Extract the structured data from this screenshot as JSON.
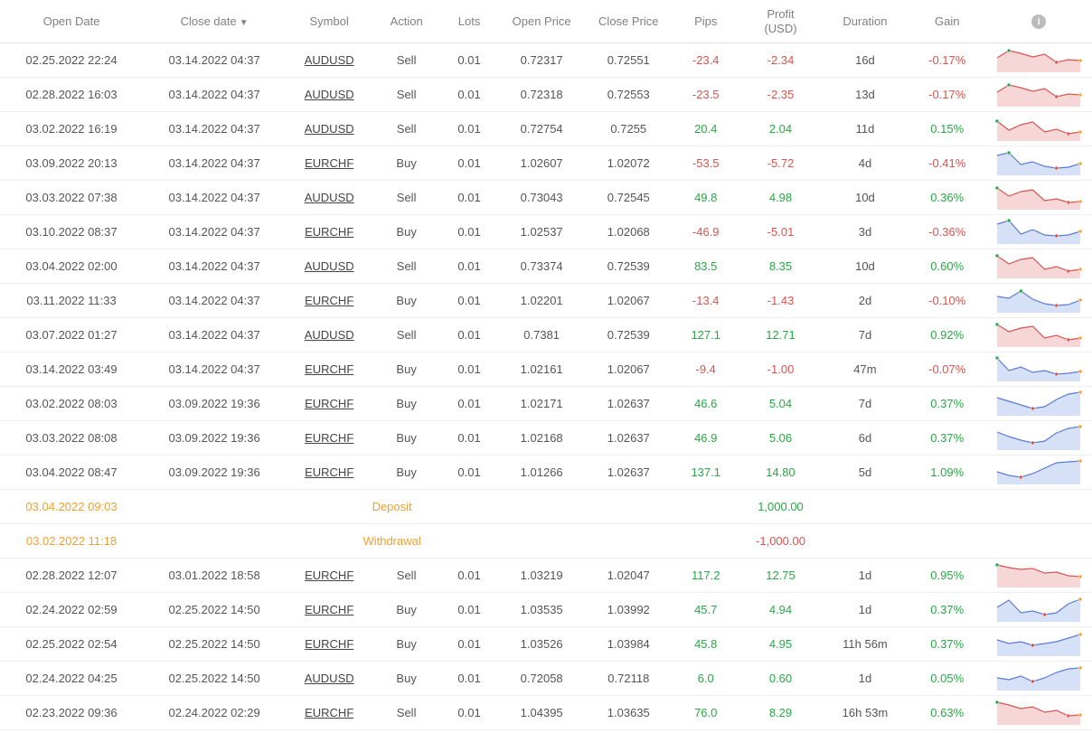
{
  "headers": {
    "open_date": "Open Date",
    "close_date": "Close date",
    "symbol": "Symbol",
    "action": "Action",
    "lots": "Lots",
    "open_price": "Open Price",
    "close_price": "Close Price",
    "pips": "Pips",
    "profit_line1": "Profit",
    "profit_line2": "(USD)",
    "duration": "Duration",
    "gain": "Gain"
  },
  "colors": {
    "positive": "#27a844",
    "negative": "#d9534f",
    "deposit": "#f0a030",
    "border": "#eeeeee",
    "header_text": "#808080",
    "body_text": "#555555",
    "sell_fill": "#f6d6d6",
    "sell_stroke": "#d9534f",
    "buy_fill": "#d6e0f6",
    "buy_stroke": "#5a7cd8"
  },
  "sparkline": {
    "width": 96,
    "height": 30,
    "marker_radius": 2
  },
  "rows": [
    {
      "type": "trade",
      "open": "02.25.2022 22:24",
      "close": "03.14.2022 04:37",
      "symbol": "AUDUSD",
      "action": "Sell",
      "lots": "0.01",
      "op": "0.72317",
      "cp": "0.72551",
      "pips": "-23.4",
      "pips_c": "neg",
      "profit": "-2.34",
      "profit_c": "neg",
      "dur": "16d",
      "gain": "-0.17%",
      "gain_c": "neg",
      "spark": [
        14,
        6,
        9,
        13,
        10,
        19,
        16,
        17
      ],
      "spark_style": "sell"
    },
    {
      "type": "trade",
      "open": "02.28.2022 16:03",
      "close": "03.14.2022 04:37",
      "symbol": "AUDUSD",
      "action": "Sell",
      "lots": "0.01",
      "op": "0.72318",
      "cp": "0.72553",
      "pips": "-23.5",
      "pips_c": "neg",
      "profit": "-2.35",
      "profit_c": "neg",
      "dur": "13d",
      "gain": "-0.17%",
      "gain_c": "neg",
      "spark": [
        14,
        6,
        9,
        13,
        10,
        19,
        16,
        17
      ],
      "spark_style": "sell"
    },
    {
      "type": "trade",
      "open": "03.02.2022 16:19",
      "close": "03.14.2022 04:37",
      "symbol": "AUDUSD",
      "action": "Sell",
      "lots": "0.01",
      "op": "0.72754",
      "cp": "0.7255",
      "pips": "20.4",
      "pips_c": "pos",
      "profit": "2.04",
      "profit_c": "pos",
      "dur": "11d",
      "gain": "0.15%",
      "gain_c": "pos",
      "spark": [
        8,
        18,
        12,
        9,
        20,
        17,
        22,
        20
      ],
      "spark_style": "sell"
    },
    {
      "type": "trade",
      "open": "03.09.2022 20:13",
      "close": "03.14.2022 04:37",
      "symbol": "EURCHF",
      "action": "Buy",
      "lots": "0.01",
      "op": "1.02607",
      "cp": "1.02072",
      "pips": "-53.5",
      "pips_c": "neg",
      "profit": "-5.72",
      "profit_c": "neg",
      "dur": "4d",
      "gain": "-0.41%",
      "gain_c": "neg",
      "spark": [
        8,
        5,
        18,
        15,
        20,
        22,
        21,
        17
      ],
      "spark_style": "buy"
    },
    {
      "type": "trade",
      "open": "03.03.2022 07:38",
      "close": "03.14.2022 04:37",
      "symbol": "AUDUSD",
      "action": "Sell",
      "lots": "0.01",
      "op": "0.73043",
      "cp": "0.72545",
      "pips": "49.8",
      "pips_c": "pos",
      "profit": "4.98",
      "profit_c": "pos",
      "dur": "10d",
      "gain": "0.36%",
      "gain_c": "pos",
      "spark": [
        6,
        15,
        10,
        8,
        20,
        18,
        22,
        21
      ],
      "spark_style": "sell"
    },
    {
      "type": "trade",
      "open": "03.10.2022 08:37",
      "close": "03.14.2022 04:37",
      "symbol": "EURCHF",
      "action": "Buy",
      "lots": "0.01",
      "op": "1.02537",
      "cp": "1.02068",
      "pips": "-46.9",
      "pips_c": "neg",
      "profit": "-5.01",
      "profit_c": "neg",
      "dur": "3d",
      "gain": "-0.36%",
      "gain_c": "neg",
      "spark": [
        8,
        4,
        19,
        14,
        20,
        21,
        20,
        16
      ],
      "spark_style": "buy"
    },
    {
      "type": "trade",
      "open": "03.04.2022 02:00",
      "close": "03.14.2022 04:37",
      "symbol": "AUDUSD",
      "action": "Sell",
      "lots": "0.01",
      "op": "0.73374",
      "cp": "0.72539",
      "pips": "83.5",
      "pips_c": "pos",
      "profit": "8.35",
      "profit_c": "pos",
      "dur": "10d",
      "gain": "0.60%",
      "gain_c": "pos",
      "spark": [
        5,
        14,
        9,
        7,
        20,
        17,
        22,
        20
      ],
      "spark_style": "sell"
    },
    {
      "type": "trade",
      "open": "03.11.2022 11:33",
      "close": "03.14.2022 04:37",
      "symbol": "EURCHF",
      "action": "Buy",
      "lots": "0.01",
      "op": "1.02201",
      "cp": "1.02067",
      "pips": "-13.4",
      "pips_c": "neg",
      "profit": "-1.43",
      "profit_c": "neg",
      "dur": "2d",
      "gain": "-0.10%",
      "gain_c": "neg",
      "spark": [
        12,
        14,
        6,
        15,
        20,
        22,
        21,
        16
      ],
      "spark_style": "buy"
    },
    {
      "type": "trade",
      "open": "03.07.2022 01:27",
      "close": "03.14.2022 04:37",
      "symbol": "AUDUSD",
      "action": "Sell",
      "lots": "0.01",
      "op": "0.7381",
      "cp": "0.72539",
      "pips": "127.1",
      "pips_c": "pos",
      "profit": "12.71",
      "profit_c": "pos",
      "dur": "7d",
      "gain": "0.92%",
      "gain_c": "pos",
      "spark": [
        5,
        13,
        9,
        7,
        20,
        17,
        22,
        20
      ],
      "spark_style": "sell"
    },
    {
      "type": "trade",
      "open": "03.14.2022 03:49",
      "close": "03.14.2022 04:37",
      "symbol": "EURCHF",
      "action": "Buy",
      "lots": "0.01",
      "op": "1.02161",
      "cp": "1.02067",
      "pips": "-9.4",
      "pips_c": "neg",
      "profit": "-1.00",
      "profit_c": "neg",
      "dur": "47m",
      "gain": "-0.07%",
      "gain_c": "neg",
      "spark": [
        4,
        18,
        14,
        20,
        18,
        22,
        21,
        19
      ],
      "spark_style": "buy"
    },
    {
      "type": "trade",
      "open": "03.02.2022 08:03",
      "close": "03.09.2022 19:36",
      "symbol": "EURCHF",
      "action": "Buy",
      "lots": "0.01",
      "op": "1.02171",
      "cp": "1.02637",
      "pips": "46.6",
      "pips_c": "pos",
      "profit": "5.04",
      "profit_c": "pos",
      "dur": "7d",
      "gain": "0.37%",
      "gain_c": "pos",
      "spark": [
        10,
        14,
        18,
        22,
        20,
        12,
        6,
        4
      ],
      "spark_style": "buy"
    },
    {
      "type": "trade",
      "open": "03.03.2022 08:08",
      "close": "03.09.2022 19:36",
      "symbol": "EURCHF",
      "action": "Buy",
      "lots": "0.01",
      "op": "1.02168",
      "cp": "1.02637",
      "pips": "46.9",
      "pips_c": "pos",
      "profit": "5.06",
      "profit_c": "pos",
      "dur": "6d",
      "gain": "0.37%",
      "gain_c": "pos",
      "spark": [
        10,
        15,
        19,
        22,
        20,
        11,
        6,
        4
      ],
      "spark_style": "buy"
    },
    {
      "type": "trade",
      "open": "03.04.2022 08:47",
      "close": "03.09.2022 19:36",
      "symbol": "EURCHF",
      "action": "Buy",
      "lots": "0.01",
      "op": "1.01266",
      "cp": "1.02637",
      "pips": "137.1",
      "pips_c": "pos",
      "profit": "14.80",
      "profit_c": "pos",
      "dur": "5d",
      "gain": "1.09%",
      "gain_c": "pos",
      "spark": [
        16,
        20,
        22,
        18,
        12,
        6,
        5,
        4
      ],
      "spark_style": "buy"
    },
    {
      "type": "deposit",
      "open": "03.04.2022 09:03",
      "label": "Deposit",
      "amount": "1,000.00",
      "amount_c": "pos"
    },
    {
      "type": "deposit",
      "open": "03.02.2022 11:18",
      "label": "Withdrawal",
      "amount": "-1,000.00",
      "amount_c": "neg"
    },
    {
      "type": "trade",
      "open": "02.28.2022 12:07",
      "close": "03.01.2022 18:58",
      "symbol": "EURCHF",
      "action": "Sell",
      "lots": "0.01",
      "op": "1.03219",
      "cp": "1.02047",
      "pips": "117.2",
      "pips_c": "pos",
      "profit": "12.75",
      "profit_c": "pos",
      "dur": "1d",
      "gain": "0.95%",
      "gain_c": "pos",
      "spark": [
        5,
        8,
        10,
        9,
        14,
        13,
        17,
        18
      ],
      "spark_style": "sell"
    },
    {
      "type": "trade",
      "open": "02.24.2022 02:59",
      "close": "02.25.2022 14:50",
      "symbol": "EURCHF",
      "action": "Buy",
      "lots": "0.01",
      "op": "1.03535",
      "cp": "1.03992",
      "pips": "45.7",
      "pips_c": "pos",
      "profit": "4.94",
      "profit_c": "pos",
      "dur": "1d",
      "gain": "0.37%",
      "gain_c": "pos",
      "spark": [
        14,
        6,
        20,
        18,
        22,
        20,
        10,
        5
      ],
      "spark_style": "buy"
    },
    {
      "type": "trade",
      "open": "02.25.2022 02:54",
      "close": "02.25.2022 14:50",
      "symbol": "EURCHF",
      "action": "Buy",
      "lots": "0.01",
      "op": "1.03526",
      "cp": "1.03984",
      "pips": "45.8",
      "pips_c": "pos",
      "profit": "4.95",
      "profit_c": "pos",
      "dur": "11h 56m",
      "gain": "0.37%",
      "gain_c": "pos",
      "spark": [
        12,
        16,
        14,
        18,
        16,
        14,
        10,
        6
      ],
      "spark_style": "buy"
    },
    {
      "type": "trade",
      "open": "02.24.2022 04:25",
      "close": "02.25.2022 14:50",
      "symbol": "AUDUSD",
      "action": "Buy",
      "lots": "0.01",
      "op": "0.72058",
      "cp": "0.72118",
      "pips": "6.0",
      "pips_c": "pos",
      "profit": "0.60",
      "profit_c": "pos",
      "dur": "1d",
      "gain": "0.05%",
      "gain_c": "pos",
      "spark": [
        16,
        18,
        14,
        20,
        16,
        10,
        6,
        5
      ],
      "spark_style": "buy"
    },
    {
      "type": "trade",
      "open": "02.23.2022 09:36",
      "close": "02.24.2022 02:29",
      "symbol": "EURCHF",
      "action": "Sell",
      "lots": "0.01",
      "op": "1.04395",
      "cp": "1.03635",
      "pips": "76.0",
      "pips_c": "pos",
      "profit": "8.29",
      "profit_c": "pos",
      "dur": "16h 53m",
      "gain": "0.63%",
      "gain_c": "pos",
      "spark": [
        5,
        8,
        12,
        10,
        16,
        14,
        20,
        19
      ],
      "spark_style": "sell"
    }
  ]
}
